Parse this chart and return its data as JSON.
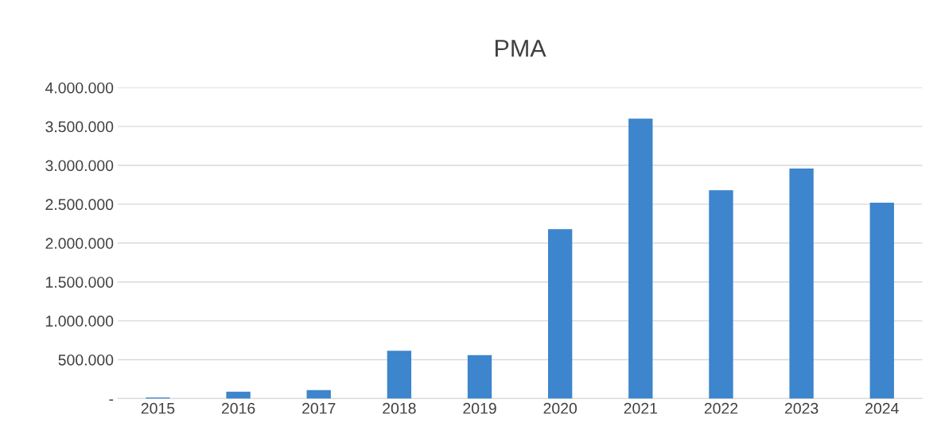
{
  "chart_data": {
    "type": "bar",
    "title": "PMA",
    "categories": [
      "2015",
      "2016",
      "2017",
      "2018",
      "2019",
      "2020",
      "2021",
      "2022",
      "2023",
      "2024"
    ],
    "values": [
      15000,
      88000,
      108000,
      614000,
      560000,
      2180000,
      3600000,
      2680000,
      2960000,
      2520000
    ],
    "color": "#3d85cc",
    "ylim": [
      0,
      4000000
    ],
    "yticks": [
      {
        "value": 0,
        "label": "-"
      },
      {
        "value": 500000,
        "label": "500.000"
      },
      {
        "value": 1000000,
        "label": "1.000.000"
      },
      {
        "value": 1500000,
        "label": "1.500.000"
      },
      {
        "value": 2000000,
        "label": "2.000.000"
      },
      {
        "value": 2500000,
        "label": "2.500.000"
      },
      {
        "value": 3000000,
        "label": "3.000.000"
      },
      {
        "value": 3500000,
        "label": "3.500.000"
      },
      {
        "value": 4000000,
        "label": "4.000.000"
      }
    ],
    "grid": "y"
  }
}
